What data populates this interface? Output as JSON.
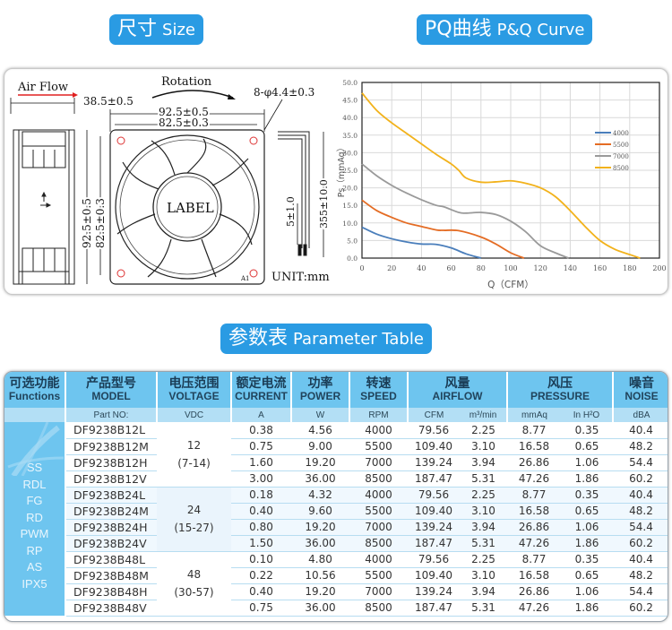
{
  "sections": {
    "size": {
      "cn": "尺寸",
      "en": "Size"
    },
    "pq": {
      "cn": "PQ曲线",
      "en": "P&Q Curve"
    },
    "params": {
      "cn": "参数表",
      "en": "Parameter Table"
    }
  },
  "drawing": {
    "air_flow": "Air Flow",
    "rotation": "Rotation",
    "depth": "38.5±0.5",
    "outer_width": "92.5±0.5",
    "hole_spacing_w": "82.5±0.3",
    "holes": "8-φ4.4±0.3",
    "outer_height": "92.5±0.5",
    "hole_spacing_h": "82.5±0.3",
    "label": "LABEL",
    "strip_length": "5±1.0",
    "lead_length": "355±10.0",
    "unit": "UNIT:mm",
    "corner_mark": "A1"
  },
  "chart_data": {
    "type": "line",
    "title": "",
    "xlabel": "Q（CFM）",
    "ylabel": "Ps（mmAq）",
    "xlim": [
      0,
      200
    ],
    "ylim": [
      0,
      50
    ],
    "x_ticks": [
      "0",
      "20",
      "40",
      "60",
      "80",
      "100",
      "120",
      "140",
      "160",
      "180",
      "200"
    ],
    "y_ticks": [
      "0.0",
      "5.0",
      "10.0",
      "15.0",
      "20.0",
      "25.0",
      "30.0",
      "35.0",
      "40.0",
      "45.0",
      "50.0"
    ],
    "grid": true,
    "legend_position": "right-inside",
    "series": [
      {
        "name": "4000",
        "color": "#4a7ebb",
        "x": [
          0,
          10,
          20,
          30,
          40,
          50,
          60,
          70,
          80
        ],
        "y": [
          8.8,
          6.8,
          5.5,
          4.6,
          4.0,
          3.9,
          2.9,
          1.2,
          0.0
        ]
      },
      {
        "name": "5500",
        "color": "#e46c24",
        "x": [
          0,
          10,
          20,
          30,
          40,
          50,
          55,
          65,
          80,
          90,
          100,
          109
        ],
        "y": [
          16.5,
          13.5,
          11.6,
          10.0,
          9.0,
          8.0,
          7.9,
          7.8,
          6.0,
          4.0,
          1.5,
          0.0
        ]
      },
      {
        "name": "7000",
        "color": "#9a9a9a",
        "x": [
          0,
          10,
          20,
          30,
          40,
          50,
          55,
          65,
          70,
          80,
          90,
          100,
          110,
          120,
          130,
          139
        ],
        "y": [
          26.8,
          23.4,
          20.7,
          18.5,
          16.6,
          15.0,
          14.6,
          13.0,
          12.8,
          13.0,
          12.4,
          10.5,
          7.5,
          3.5,
          1.5,
          0.0
        ]
      },
      {
        "name": "8500",
        "color": "#f2b21b",
        "x": [
          0,
          10,
          20,
          30,
          40,
          50,
          60,
          65,
          70,
          80,
          90,
          100,
          110,
          120,
          130,
          140,
          150,
          160,
          170,
          180,
          187
        ],
        "y": [
          47.0,
          42.0,
          38.5,
          35.5,
          32.5,
          29.5,
          26.8,
          25.0,
          22.8,
          21.6,
          21.7,
          22.0,
          21.3,
          20.0,
          17.5,
          13.5,
          9.0,
          5.0,
          2.5,
          1.0,
          0.0
        ]
      }
    ]
  },
  "table": {
    "headers": [
      {
        "cn": "可选功能",
        "en": "Functions"
      },
      {
        "cn": "产品型号",
        "en": "MODEL"
      },
      {
        "cn": "电压范围",
        "en": "VOLTAGE"
      },
      {
        "cn": "额定电流",
        "en": "CURRENT"
      },
      {
        "cn": "功率",
        "en": "POWER"
      },
      {
        "cn": "转速",
        "en": "SPEED"
      },
      {
        "cn": "风量",
        "en": "AIRFLOW"
      },
      {
        "cn": "风压",
        "en": "PRESSURE"
      },
      {
        "cn": "噪音",
        "en": "NOISE"
      }
    ],
    "units": {
      "model": "Part NO:",
      "voltage": "VDC",
      "current": "A",
      "power": "W",
      "speed": "RPM",
      "cfm": "CFM",
      "m3min": "m³/min",
      "mmaq": "mmAq",
      "inh2o": "In H²O",
      "noise": "dBA"
    },
    "functions": [
      "SS",
      "RDL",
      "FG",
      "RD",
      "PWM",
      "RP",
      "AS",
      "IPX5"
    ],
    "groups": [
      {
        "voltage": "12",
        "range": "(7-14)"
      },
      {
        "voltage": "24",
        "range": "(15-27)"
      },
      {
        "voltage": "48",
        "range": "(30-57)"
      }
    ],
    "rows": [
      {
        "model": "DF9238B12L",
        "current": "0.38",
        "power": "4.56",
        "speed": "4000",
        "cfm": "79.56",
        "m3min": "2.25",
        "mmaq": "8.77",
        "inh2o": "0.35",
        "noise": "40.4"
      },
      {
        "model": "DF9238B12M",
        "current": "0.75",
        "power": "9.00",
        "speed": "5500",
        "cfm": "109.40",
        "m3min": "3.10",
        "mmaq": "16.58",
        "inh2o": "0.65",
        "noise": "48.2"
      },
      {
        "model": "DF9238B12H",
        "current": "1.60",
        "power": "19.20",
        "speed": "7000",
        "cfm": "139.24",
        "m3min": "3.94",
        "mmaq": "26.86",
        "inh2o": "1.06",
        "noise": "54.4"
      },
      {
        "model": "DF9238B12V",
        "current": "3.00",
        "power": "36.00",
        "speed": "8500",
        "cfm": "187.47",
        "m3min": "5.31",
        "mmaq": "47.26",
        "inh2o": "1.86",
        "noise": "60.2"
      },
      {
        "model": "DF9238B24L",
        "current": "0.18",
        "power": "4.32",
        "speed": "4000",
        "cfm": "79.56",
        "m3min": "2.25",
        "mmaq": "8.77",
        "inh2o": "0.35",
        "noise": "40.4"
      },
      {
        "model": "DF9238B24M",
        "current": "0.40",
        "power": "9.60",
        "speed": "5500",
        "cfm": "109.40",
        "m3min": "3.10",
        "mmaq": "16.58",
        "inh2o": "0.65",
        "noise": "48.2"
      },
      {
        "model": "DF9238B24H",
        "current": "0.80",
        "power": "19.20",
        "speed": "7000",
        "cfm": "139.24",
        "m3min": "3.94",
        "mmaq": "26.86",
        "inh2o": "1.06",
        "noise": "54.4"
      },
      {
        "model": "DF9238B24V",
        "current": "1.50",
        "power": "36.00",
        "speed": "8500",
        "cfm": "187.47",
        "m3min": "5.31",
        "mmaq": "47.26",
        "inh2o": "1.86",
        "noise": "60.2"
      },
      {
        "model": "DF9238B48L",
        "current": "0.10",
        "power": "4.80",
        "speed": "4000",
        "cfm": "79.56",
        "m3min": "2.25",
        "mmaq": "8.77",
        "inh2o": "0.35",
        "noise": "40.4"
      },
      {
        "model": "DF9238B48M",
        "current": "0.22",
        "power": "10.56",
        "speed": "5500",
        "cfm": "109.40",
        "m3min": "3.10",
        "mmaq": "16.58",
        "inh2o": "0.65",
        "noise": "48.2"
      },
      {
        "model": "DF9238B48H",
        "current": "0.40",
        "power": "19.20",
        "speed": "7000",
        "cfm": "139.24",
        "m3min": "3.94",
        "mmaq": "26.86",
        "inh2o": "1.06",
        "noise": "54.4"
      },
      {
        "model": "DF9238B48V",
        "current": "0.75",
        "power": "36.00",
        "speed": "8500",
        "cfm": "187.47",
        "m3min": "5.31",
        "mmaq": "47.26",
        "inh2o": "1.86",
        "noise": "60.2"
      }
    ]
  },
  "colors": {
    "accent": "#2a9be3",
    "header_bg": "#6ec5ef",
    "subheader_bg": "#b3dff5",
    "row_line": "#b7ddf1"
  }
}
